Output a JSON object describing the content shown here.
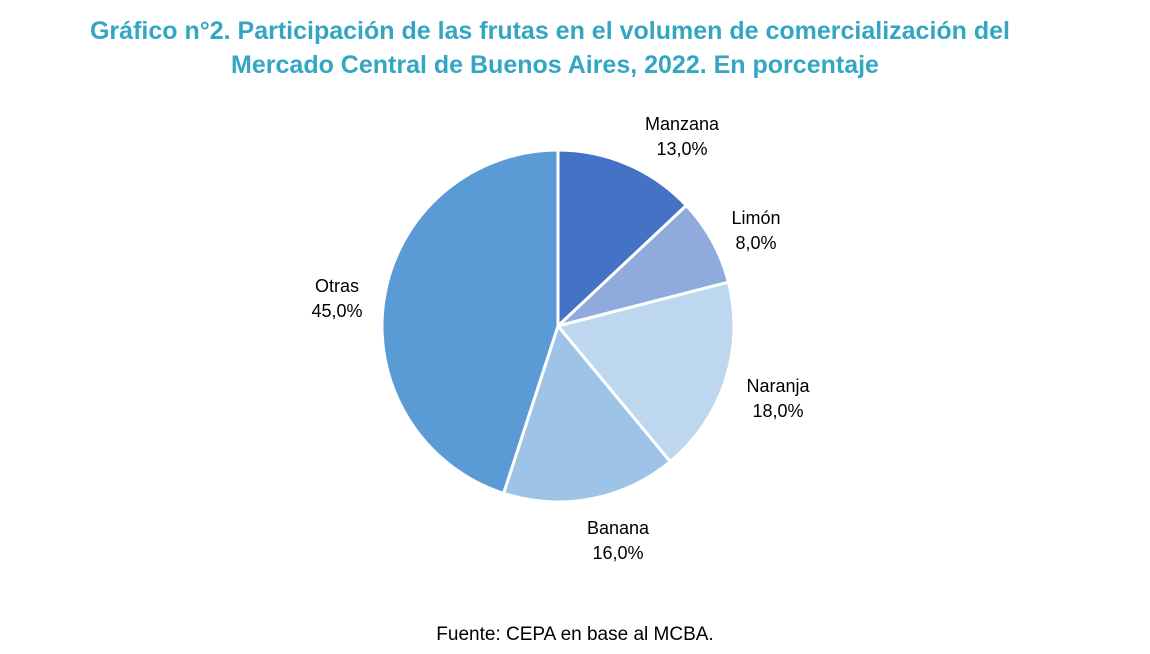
{
  "chart_data": {
    "type": "pie",
    "title_line1": "Gráfico n°2. Participación de las frutas en el volumen de comercialización del",
    "title_line2": "Mercado Central de Buenos Aires, 2022. En porcentaje",
    "slices": [
      {
        "label": "Manzana",
        "value": 13.0,
        "value_label": "13,0%",
        "color": "#4472C4"
      },
      {
        "label": "Limón",
        "value": 8.0,
        "value_label": "8,0%",
        "color": "#8FAADC"
      },
      {
        "label": "Naranja",
        "value": 18.0,
        "value_label": "18,0%",
        "color": "#BDD7EE"
      },
      {
        "label": "Banana",
        "value": 16.0,
        "value_label": "16,0%",
        "color": "#9DC3E6"
      },
      {
        "label": "Otras",
        "value": 45.0,
        "value_label": "45,0%",
        "color": "#5B9BD5"
      }
    ],
    "source": "Fuente: CEPA en base al MCBA."
  }
}
